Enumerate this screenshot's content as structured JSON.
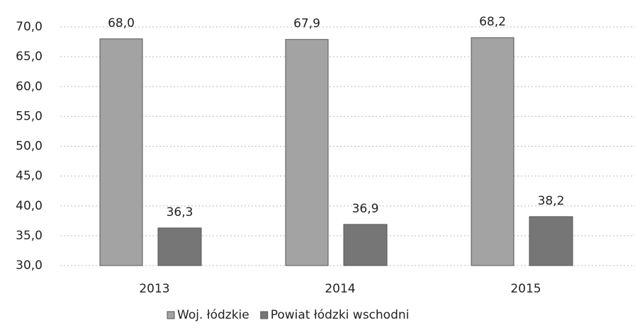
{
  "chart_data": {
    "type": "bar",
    "categories": [
      "2013",
      "2014",
      "2015"
    ],
    "series": [
      {
        "name": "Woj. łódzkie",
        "color": "#a3a3a3",
        "values": [
          68.0,
          67.9,
          68.2
        ],
        "value_labels": [
          "68,0",
          "67,9",
          "68,2"
        ]
      },
      {
        "name": "Powiat łódzki wschodni",
        "color": "#767676",
        "values": [
          36.3,
          36.9,
          38.2
        ],
        "value_labels": [
          "36,3",
          "36,9",
          "38,2"
        ]
      }
    ],
    "ylim": [
      30,
      70
    ],
    "yticks": [
      {
        "value": 30,
        "label": "30,0"
      },
      {
        "value": 35,
        "label": "35,0"
      },
      {
        "value": 40,
        "label": "40,0"
      },
      {
        "value": 45,
        "label": "45,0"
      },
      {
        "value": 50,
        "label": "50,0"
      },
      {
        "value": 55,
        "label": "55,0"
      },
      {
        "value": 60,
        "label": "60,0"
      },
      {
        "value": 65,
        "label": "65,0"
      },
      {
        "value": 70,
        "label": "70,0"
      }
    ],
    "grid": true,
    "legend": "bottom"
  }
}
